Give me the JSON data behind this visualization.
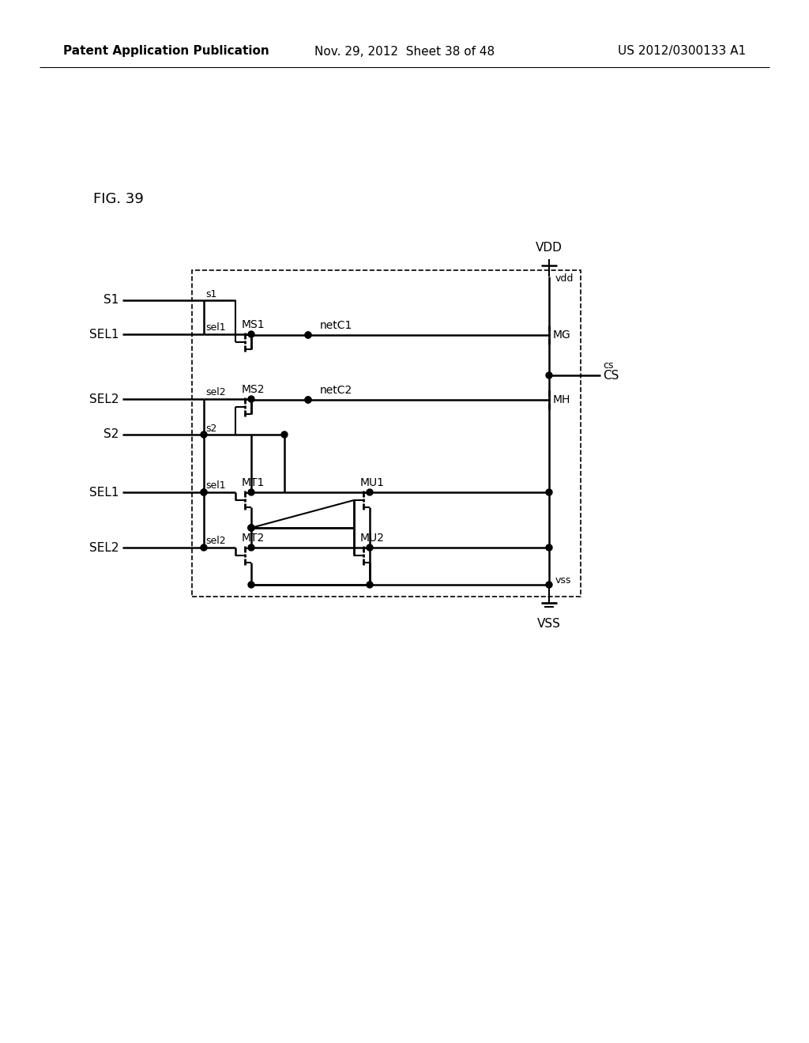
{
  "title_left": "Patent Application Publication",
  "title_mid": "Nov. 29, 2012  Sheet 38 of 48",
  "title_right": "US 2012/0300133 A1",
  "fig_label": "FIG. 39",
  "background": "#ffffff",
  "line_color": "#000000",
  "dashed_color": "#000000"
}
